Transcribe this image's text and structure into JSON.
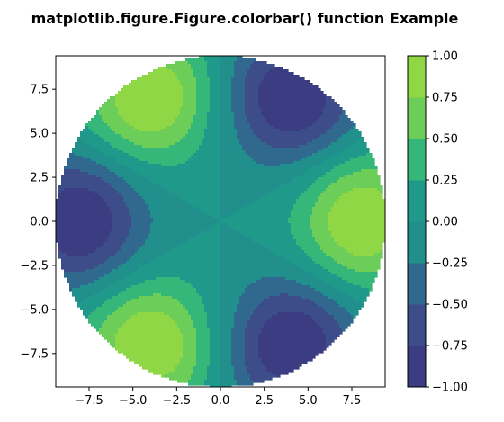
{
  "chart_data": {
    "type": "filled-contour",
    "title": "matplotlib.figure.Figure.colorbar() function Example",
    "xlabel": "",
    "ylabel": "",
    "xlim": [
      -9.4,
      9.4
    ],
    "ylim": [
      -9.4,
      9.4
    ],
    "x_ticks": [
      -7.5,
      -5.0,
      -2.5,
      0.0,
      2.5,
      5.0,
      7.5
    ],
    "x_tick_labels": [
      "−7.5",
      "−5.0",
      "−2.5",
      "0.0",
      "2.5",
      "5.0",
      "7.5"
    ],
    "y_ticks": [
      7.5,
      5.0,
      2.5,
      0.0,
      -2.5,
      -5.0,
      -7.5
    ],
    "y_tick_labels": [
      "7.5",
      "5.0",
      "2.5",
      "0.0",
      "−2.5",
      "−5.0",
      "−7.5"
    ],
    "domain": "disk of radius 9.4 centred at the origin",
    "field": "z = cos(3·θ) · exp(−(r − 8)² / 12), θ = atan2(y, x)",
    "levels": [
      -1.0,
      -0.75,
      -0.5,
      -0.25,
      0.0,
      0.25,
      0.5,
      0.75,
      1.0
    ],
    "colorbar": {
      "ticks": [
        1.0,
        0.75,
        0.5,
        0.25,
        0.0,
        -0.25,
        -0.5,
        -0.75,
        -1.0
      ],
      "tick_labels": [
        "1.00",
        "0.75",
        "0.50",
        "0.25",
        "0.00",
        "−0.25",
        "−0.50",
        "−0.75",
        "−1.00"
      ]
    },
    "colors": [
      "#3b3c82",
      "#3c4d8a",
      "#31688e",
      "#21908d",
      "#1f9a8a",
      "#35b779",
      "#6cce59",
      "#8fd744",
      "#d7e11f"
    ],
    "grid": false,
    "legend": "colorbar on the right"
  }
}
